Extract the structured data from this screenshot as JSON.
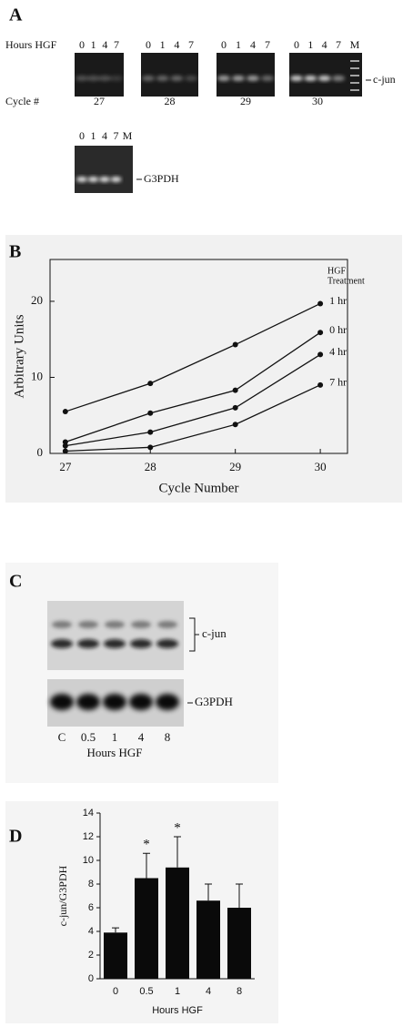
{
  "panel_a": {
    "label": "A",
    "row_label": "Hours HGF",
    "lanes": [
      "0",
      "1",
      "4",
      "7"
    ],
    "marker_lane": "M",
    "band": "c-jun",
    "cycle_label": "Cycle #",
    "cycles": [
      "27",
      "28",
      "29",
      "30"
    ],
    "control_lanes": [
      "0",
      "1",
      "4",
      "7",
      "M"
    ],
    "control_band": "G3PDH"
  },
  "panel_c": {
    "label": "C",
    "band": "c-jun",
    "control_band": "G3PDH",
    "lanes": [
      "C",
      "0.5",
      "1",
      "4",
      "8"
    ],
    "x_label": "Hours HGF"
  },
  "chart_data": [
    {
      "type": "line",
      "panel_label": "B",
      "x_label": "Cycle Number",
      "y_label": "Arbitrary Units",
      "legend_title": [
        "HGF",
        "Treatment"
      ],
      "x": [
        27,
        28,
        29,
        30
      ],
      "xlim": [
        26.82,
        30.32
      ],
      "xticks": [
        27,
        28,
        29,
        30
      ],
      "ylim": [
        0,
        25.5
      ],
      "yticks": [
        0,
        10,
        20
      ],
      "series": [
        {
          "name": "1 hr",
          "color": "#111111",
          "values": [
            5.5,
            9.2,
            14.3,
            19.7
          ]
        },
        {
          "name": "0 hr",
          "color": "#111111",
          "values": [
            1.5,
            5.3,
            8.3,
            15.9
          ]
        },
        {
          "name": "4 hr",
          "color": "#111111",
          "values": [
            1.0,
            2.8,
            6.0,
            13.0
          ]
        },
        {
          "name": "7 hr",
          "color": "#111111",
          "values": [
            0.3,
            0.8,
            3.8,
            9.0
          ]
        }
      ]
    },
    {
      "type": "bar",
      "panel_label": "D",
      "x_label": "Hours HGF",
      "y_label": "c-jun/G3PDH",
      "categories": [
        "0",
        "0.5",
        "1",
        "4",
        "8"
      ],
      "values": [
        3.9,
        8.5,
        9.4,
        6.6,
        6.0
      ],
      "errors": [
        0.4,
        2.1,
        2.6,
        1.4,
        2.0
      ],
      "color": "#0a0a0a",
      "ylim": [
        0,
        14
      ],
      "yticks": [
        0,
        2,
        4,
        6,
        8,
        10,
        12,
        14
      ],
      "annotations": [
        {
          "text": "*",
          "category": "0.5"
        },
        {
          "text": "*",
          "category": "1"
        }
      ]
    }
  ]
}
